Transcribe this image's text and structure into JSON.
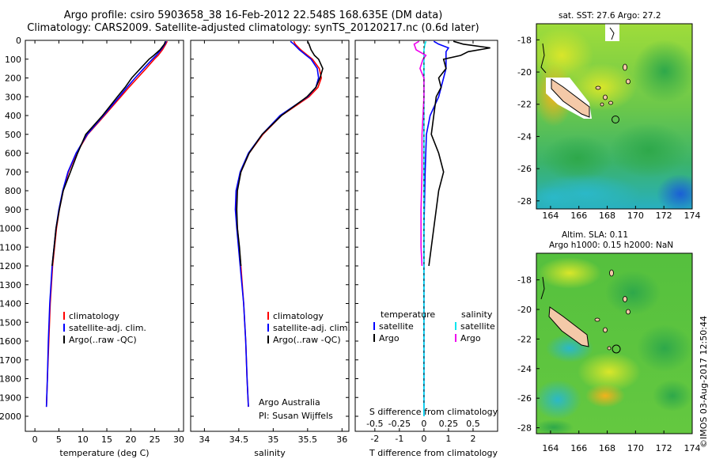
{
  "header": {
    "line1": "Argo profile: csiro 5903658_38 16-Feb-2012 22.548S 168.635E (DM data)",
    "line2": "Climatology: CARS2009. Satellite-adjusted climatology: synTS_20120217.nc (0.6d later)"
  },
  "maps": {
    "sst_label": "sat. SST: 27.6 Argo: 27.2",
    "sla_label1": "Altim. SLA: 0.11",
    "sla_label2": "Argo h1000: 0.15 h2000: NaN",
    "credit": "©IMOS 03-Aug-2017 12:50:44",
    "lon_ticks": [
      "164",
      "166",
      "168",
      "170",
      "172",
      "174"
    ],
    "lat_ticks_top": [
      "-18",
      "-20",
      "-22",
      "-24",
      "-26",
      "-28"
    ],
    "lat_ticks_bottom": [
      "-18",
      "-20",
      "-22",
      "-24",
      "-26",
      "-28"
    ],
    "float_position": {
      "lon": 168.635,
      "lat": -22.548
    }
  },
  "chart_data": [
    {
      "type": "line",
      "panel": "temperature",
      "xlabel": "temperature (deg C)",
      "ylabel": "",
      "xlim": [
        -2,
        31
      ],
      "ylim": [
        2080,
        0
      ],
      "xticks": [
        "0",
        "5",
        "10",
        "15",
        "20",
        "25",
        "30"
      ],
      "yticks": [
        "0",
        "100",
        "200",
        "300",
        "400",
        "500",
        "600",
        "700",
        "800",
        "900",
        "1000",
        "1100",
        "1200",
        "1300",
        "1400",
        "1500",
        "1600",
        "1700",
        "1800",
        "1900",
        "2000"
      ],
      "legend": [
        "climatology",
        "satellite-adj. clim.",
        "Argo(..raw -QC)"
      ],
      "series": [
        {
          "name": "climatology",
          "color": "#ff0000",
          "depth": [
            5,
            20,
            50,
            80,
            100,
            150,
            200,
            250,
            300,
            400,
            500,
            600,
            700,
            800,
            900,
            1000,
            1200,
            1400,
            1600,
            1800,
            1950
          ],
          "values": [
            27.6,
            27.3,
            26.6,
            25.7,
            24.9,
            23.2,
            21.4,
            19.6,
            17.9,
            14.5,
            11.0,
            8.7,
            7.0,
            5.9,
            5.1,
            4.5,
            3.7,
            3.2,
            2.9,
            2.6,
            2.4
          ]
        },
        {
          "name": "satellite-adj. clim.",
          "color": "#0000ff",
          "depth": [
            5,
            20,
            50,
            80,
            100,
            150,
            200,
            250,
            300,
            400,
            500,
            600,
            700,
            800,
            900,
            1000,
            1200,
            1400,
            1600,
            1800,
            1950
          ],
          "values": [
            27.4,
            27.1,
            26.3,
            25.3,
            24.5,
            22.7,
            20.9,
            19.2,
            17.6,
            14.3,
            10.9,
            8.6,
            6.9,
            5.8,
            5.0,
            4.4,
            3.6,
            3.1,
            2.8,
            2.6,
            2.4
          ]
        },
        {
          "name": "Argo(..raw -QC)",
          "color": "#000000",
          "depth": [
            5,
            20,
            50,
            80,
            100,
            150,
            200,
            250,
            300,
            400,
            500,
            600,
            700,
            800,
            900,
            1000,
            1100,
            1200
          ],
          "values": [
            27.2,
            27.0,
            26.1,
            24.8,
            23.8,
            22.0,
            20.2,
            18.8,
            17.2,
            14.1,
            10.6,
            8.9,
            7.4,
            5.9,
            5.1,
            4.4,
            4.0,
            3.6
          ]
        }
      ]
    },
    {
      "type": "line",
      "panel": "salinity",
      "xlabel": "salinity",
      "xlim": [
        33.8,
        36.1
      ],
      "ylim": [
        2080,
        0
      ],
      "xticks": [
        "34",
        "34.5",
        "35",
        "35.5",
        "36"
      ],
      "legend": [
        "climatology",
        "satellite-adj. clim.",
        "Argo(..raw -QC)"
      ],
      "annotation1": "Argo Australia",
      "annotation2": "PI: Susan Wijffels",
      "series": [
        {
          "name": "climatology",
          "color": "#ff0000",
          "depth": [
            5,
            20,
            50,
            80,
            100,
            150,
            200,
            250,
            300,
            400,
            500,
            600,
            700,
            800,
            900,
            1000,
            1200,
            1400,
            1600,
            1800,
            1950
          ],
          "values": [
            35.3,
            35.32,
            35.4,
            35.5,
            35.57,
            35.67,
            35.7,
            35.65,
            35.52,
            35.12,
            34.85,
            34.65,
            34.53,
            34.47,
            34.46,
            34.48,
            34.53,
            34.57,
            34.6,
            34.62,
            34.64
          ]
        },
        {
          "name": "satellite-adj. clim.",
          "color": "#0000ff",
          "depth": [
            5,
            20,
            50,
            80,
            100,
            150,
            200,
            250,
            300,
            400,
            500,
            600,
            700,
            800,
            900,
            1000,
            1200,
            1400,
            1600,
            1800,
            1950
          ],
          "values": [
            35.25,
            35.3,
            35.38,
            35.48,
            35.55,
            35.64,
            35.66,
            35.62,
            35.5,
            35.1,
            34.84,
            34.64,
            34.52,
            34.46,
            34.45,
            34.47,
            34.52,
            34.57,
            34.6,
            34.62,
            34.64
          ]
        },
        {
          "name": "Argo(..raw -QC)",
          "color": "#000000",
          "depth": [
            5,
            20,
            50,
            80,
            100,
            150,
            200,
            250,
            300,
            400,
            500,
            600,
            700,
            800,
            900,
            1000,
            1100,
            1200
          ],
          "values": [
            35.5,
            35.52,
            35.55,
            35.6,
            35.66,
            35.72,
            35.68,
            35.62,
            35.49,
            35.12,
            34.84,
            34.65,
            34.53,
            34.48,
            34.47,
            34.48,
            34.51,
            34.53
          ]
        }
      ]
    },
    {
      "type": "line",
      "panel": "difference",
      "xlabel_top": "S difference from climatology",
      "xlabel_bottom": "T difference from climatology",
      "t_xlim": [
        -2.8,
        3.0
      ],
      "s_xlim": [
        -0.7,
        0.75
      ],
      "t_xticks": [
        "-2",
        "-1",
        "0",
        "1",
        "2"
      ],
      "s_xticks": [
        "-0.5",
        "-0.25",
        "0",
        "0.25",
        "0.5"
      ],
      "legend_left_title": "temperature",
      "legend_right_title": "salinity",
      "legend_left": [
        "satellite",
        "Argo"
      ],
      "legend_right": [
        "satellite",
        "Argo"
      ],
      "series": [
        {
          "name": "T satellite",
          "color": "#0000ff",
          "axis": "T",
          "depth": [
            5,
            20,
            40,
            60,
            100,
            150,
            200,
            300,
            400,
            500,
            700,
            1000,
            1500,
            2000
          ],
          "values": [
            0.4,
            0.6,
            1.0,
            0.9,
            0.9,
            0.9,
            0.8,
            0.6,
            0.25,
            0.1,
            0.05,
            0.0,
            0.0,
            0.0
          ]
        },
        {
          "name": "T Argo",
          "color": "#000000",
          "axis": "T",
          "depth": [
            5,
            20,
            40,
            60,
            80,
            100,
            150,
            200,
            250,
            300,
            400,
            500,
            600,
            700,
            800,
            900,
            1000,
            1100,
            1200
          ],
          "values": [
            1.2,
            1.6,
            2.7,
            1.8,
            1.5,
            0.8,
            0.9,
            0.6,
            0.7,
            0.5,
            0.4,
            0.3,
            0.6,
            0.8,
            0.6,
            0.5,
            0.4,
            0.3,
            0.2
          ]
        },
        {
          "name": "S satellite",
          "color": "#00e5ee",
          "axis": "S",
          "depth": [
            5,
            20,
            50,
            100,
            200,
            300,
            500,
            800,
            1200,
            1600,
            2000
          ],
          "values": [
            0.02,
            0.01,
            0.0,
            0.0,
            0.0,
            0.0,
            0.0,
            0.0,
            0.0,
            0.0,
            0.0
          ]
        },
        {
          "name": "S Argo",
          "color": "#ee00ee",
          "axis": "S",
          "depth": [
            5,
            20,
            50,
            80,
            100,
            150,
            200,
            300,
            400,
            500,
            700,
            900,
            1100,
            1200
          ],
          "values": [
            -0.05,
            -0.1,
            -0.08,
            0.02,
            -0.01,
            -0.04,
            0.0,
            0.0,
            -0.01,
            -0.02,
            -0.02,
            -0.03,
            -0.03,
            -0.02
          ]
        }
      ]
    }
  ]
}
